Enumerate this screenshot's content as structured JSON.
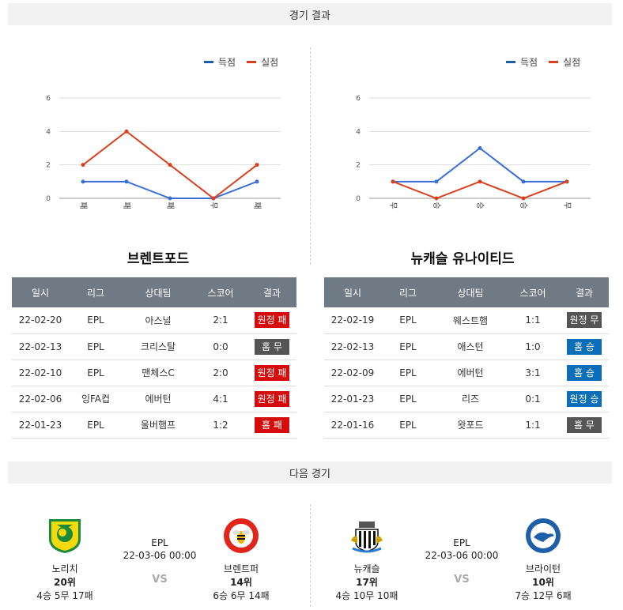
{
  "section1": {
    "title": "경기 결과"
  },
  "section2": {
    "title": "다음 경기"
  },
  "legend": {
    "scored": "득점",
    "conceded": "실점",
    "scored_color": "#3a6fd8",
    "conceded_color": "#d9401e"
  },
  "chart_data": [
    {
      "type": "line",
      "categories": [
        "패",
        "패",
        "패",
        "무",
        "패"
      ],
      "yticks": [
        "0",
        "2",
        "4",
        "6"
      ],
      "ylim": [
        0,
        6
      ],
      "series": [
        {
          "name": "득점",
          "values": [
            1,
            1,
            0,
            0,
            1
          ]
        },
        {
          "name": "실점",
          "values": [
            2,
            4,
            2,
            0,
            2
          ]
        }
      ],
      "legend": "top-right"
    },
    {
      "type": "line",
      "categories": [
        "무",
        "승",
        "승",
        "승",
        "무"
      ],
      "yticks": [
        "0",
        "2",
        "4",
        "6"
      ],
      "ylim": [
        0,
        6
      ],
      "series": [
        {
          "name": "득점",
          "values": [
            1,
            1,
            3,
            1,
            1
          ]
        },
        {
          "name": "실점",
          "values": [
            1,
            0,
            1,
            0,
            1
          ]
        }
      ],
      "legend": "top-right"
    }
  ],
  "headers": [
    "일시",
    "리그",
    "상대팀",
    "스코어",
    "결과"
  ],
  "left_team": {
    "name": "브렌트포드",
    "rows": [
      {
        "date": "22-02-20",
        "league": "EPL",
        "opponent": "아스널",
        "score": "2:1",
        "result": "원정 패",
        "kind": "loss"
      },
      {
        "date": "22-02-13",
        "league": "EPL",
        "opponent": "크리스탈",
        "score": "0:0",
        "result": "홈 무",
        "kind": "draw"
      },
      {
        "date": "22-02-10",
        "league": "EPL",
        "opponent": "맨체스C",
        "score": "2:0",
        "result": "원정 패",
        "kind": "loss"
      },
      {
        "date": "22-02-06",
        "league": "잉FA컵",
        "opponent": "에버턴",
        "score": "4:1",
        "result": "원정 패",
        "kind": "loss"
      },
      {
        "date": "22-01-23",
        "league": "EPL",
        "opponent": "울버햄프",
        "score": "1:2",
        "result": "홈 패",
        "kind": "loss"
      }
    ]
  },
  "right_team": {
    "name": "뉴캐슬 유나이티드",
    "rows": [
      {
        "date": "22-02-19",
        "league": "EPL",
        "opponent": "웨스트햄",
        "score": "1:1",
        "result": "원정 무",
        "kind": "draw"
      },
      {
        "date": "22-02-13",
        "league": "EPL",
        "opponent": "애스턴",
        "score": "1:0",
        "result": "홈 승",
        "kind": "win"
      },
      {
        "date": "22-02-09",
        "league": "EPL",
        "opponent": "에버턴",
        "score": "3:1",
        "result": "홈 승",
        "kind": "win"
      },
      {
        "date": "22-01-23",
        "league": "EPL",
        "opponent": "리즈",
        "score": "0:1",
        "result": "원정 승",
        "kind": "win"
      },
      {
        "date": "22-01-16",
        "league": "EPL",
        "opponent": "왓포드",
        "score": "1:1",
        "result": "홈 무",
        "kind": "draw"
      }
    ]
  },
  "matches": [
    {
      "league": "EPL",
      "datetime": "22-03-06 00:00",
      "vs": "VS",
      "home": {
        "name": "노리치",
        "rank": "20위",
        "record": "4승 5무 17패",
        "logo": "norwich-logo"
      },
      "away": {
        "name": "브렌트퍼",
        "rank": "14위",
        "record": "6승 6무 14패",
        "logo": "brentford-logo"
      }
    },
    {
      "league": "EPL",
      "datetime": "22-03-06 00:00",
      "vs": "VS",
      "home": {
        "name": "뉴캐슬",
        "rank": "17위",
        "record": "4승 10무 10패",
        "logo": "newcastle-logo"
      },
      "away": {
        "name": "브라이턴",
        "rank": "10위",
        "record": "7승 12무 6패",
        "logo": "brighton-logo"
      }
    }
  ]
}
